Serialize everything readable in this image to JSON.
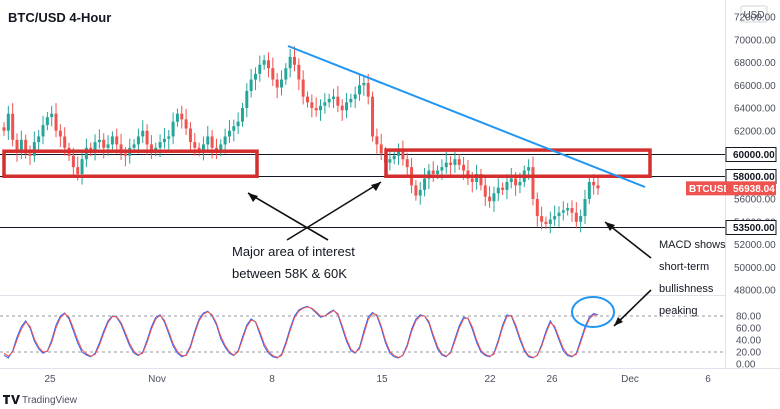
{
  "header": {
    "symbol_title": "BTC/USD 4-Hour",
    "currency_badge": "USD"
  },
  "footer": {
    "brand": "TradingView"
  },
  "chart_data": {
    "type": "candlestick",
    "title": "BTC/USD 4-Hour",
    "price_axis": {
      "ticks": [
        "72000.00",
        "70000.00",
        "68000.00",
        "66000.00",
        "64000.00",
        "62000.00",
        "60000.00",
        "58000.00",
        "56000.00",
        "54000.00",
        "53500.00",
        "52000.00",
        "50000.00",
        "48000.00"
      ],
      "range": [
        48000,
        72000
      ]
    },
    "oscillator_axis": {
      "ticks": [
        "80.00",
        "60.00",
        "40.00",
        "20.00",
        "0.00"
      ],
      "range": [
        0,
        100
      ]
    },
    "time_axis": {
      "ticks": [
        "25",
        "Nov",
        "8",
        "15",
        "22",
        "26",
        "Dec",
        "6"
      ]
    },
    "horizontal_levels": [
      {
        "label": "60000.00",
        "value": 60000
      },
      {
        "label": "58000.00",
        "value": 58000
      },
      {
        "label": "53500.00",
        "value": 53500
      }
    ],
    "last_price": {
      "label": "BTCUSD",
      "value": "56938.04",
      "color": "#ef5350"
    },
    "trendline": {
      "color": "#2196f3"
    },
    "zones": [
      {
        "name": "left-interest-zone",
        "low": 58000,
        "high": 60200,
        "color": "#d32f2f"
      },
      {
        "name": "right-interest-zone",
        "low": 58000,
        "high": 60300,
        "color": "#d32f2f"
      }
    ],
    "candles": [
      62000,
      63500,
      61200,
      60200,
      61200,
      60000,
      59800,
      61000,
      61500,
      62500,
      63200,
      63500,
      62000,
      61500,
      60500,
      59800,
      58800,
      58200,
      59500,
      60500,
      60200,
      61000,
      61200,
      60500,
      60800,
      61500,
      60800,
      60000,
      59800,
      60500,
      60800,
      61500,
      62000,
      60800,
      60200,
      60500,
      61000,
      61300,
      61500,
      62800,
      63500,
      63000,
      62200,
      61000,
      60500,
      60200,
      60800,
      61500,
      60500,
      60200,
      60800,
      61500,
      62000,
      62400,
      62800,
      64000,
      65500,
      66500,
      67000,
      67800,
      68200,
      67500,
      66500,
      65800,
      66500,
      67500,
      68500,
      67800,
      66500,
      65000,
      64500,
      64000,
      63800,
      64200,
      64500,
      64800,
      65000,
      64200,
      63800,
      64500,
      64800,
      65200,
      66000,
      66200,
      65000,
      61500,
      60800,
      60000,
      59200,
      59500,
      59800,
      60200,
      59500,
      58800,
      57200,
      56300,
      56800,
      57800,
      58500,
      58200,
      58500,
      58800,
      59200,
      59000,
      59500,
      59000,
      58500,
      57800,
      57500,
      58200,
      57200,
      56200,
      55800,
      56500,
      57000,
      56800,
      57500,
      57800,
      57200,
      57500,
      58500,
      58800,
      56000,
      54500,
      54000,
      53800,
      54200,
      54500,
      54800,
      55000,
      55200,
      54800,
      54000,
      54500,
      56000,
      57500,
      57200,
      56938
    ],
    "oscillator": {
      "upper_level": 80,
      "lower_level": 20,
      "series": [
        {
          "color": "#2962ff",
          "values": [
            15,
            10,
            22,
            45,
            62,
            72,
            60,
            38,
            25,
            18,
            22,
            40,
            65,
            80,
            85,
            75,
            55,
            35,
            20,
            15,
            12,
            18,
            35,
            55,
            72,
            80,
            78,
            66,
            48,
            30,
            18,
            14,
            20,
            40,
            62,
            78,
            82,
            70,
            50,
            30,
            18,
            12,
            15,
            30,
            55,
            75,
            85,
            88,
            80,
            65,
            42,
            28,
            18,
            14,
            22,
            45,
            65,
            75,
            70,
            50,
            30,
            18,
            12,
            10,
            16,
            36,
            60,
            80,
            90,
            94,
            96,
            92,
            85,
            78,
            80,
            86,
            90,
            82,
            60,
            38,
            22,
            18,
            28,
            55,
            78,
            86,
            80,
            60,
            35,
            18,
            12,
            10,
            15,
            32,
            58,
            75,
            82,
            80,
            68,
            45,
            25,
            15,
            12,
            20,
            42,
            64,
            78,
            76,
            58,
            36,
            20,
            14,
            12,
            18,
            40,
            65,
            82,
            80,
            62,
            40,
            22,
            12,
            10,
            15,
            32,
            55,
            72,
            60,
            40,
            22,
            14,
            12,
            18,
            40,
            62,
            78,
            84,
            82
          ]
        },
        {
          "color": "#ef5350",
          "values": [
            18,
            13,
            20,
            40,
            58,
            70,
            63,
            42,
            28,
            20,
            21,
            36,
            60,
            77,
            84,
            78,
            60,
            40,
            24,
            17,
            13,
            16,
            31,
            51,
            69,
            79,
            79,
            69,
            52,
            34,
            21,
            15,
            18,
            36,
            58,
            75,
            81,
            73,
            54,
            34,
            21,
            14,
            14,
            27,
            51,
            72,
            83,
            87,
            82,
            68,
            46,
            31,
            20,
            15,
            20,
            41,
            62,
            73,
            71,
            54,
            34,
            21,
            14,
            11,
            14,
            32,
            56,
            77,
            88,
            93,
            95,
            93,
            87,
            80,
            80,
            84,
            89,
            84,
            64,
            42,
            25,
            19,
            25,
            50,
            74,
            84,
            82,
            64,
            39,
            21,
            14,
            11,
            14,
            29,
            54,
            72,
            80,
            80,
            71,
            49,
            29,
            17,
            13,
            18,
            38,
            60,
            75,
            77,
            62,
            40,
            23,
            16,
            13,
            16,
            36,
            61,
            79,
            81,
            66,
            44,
            25,
            14,
            11,
            14,
            29,
            51,
            69,
            63,
            44,
            26,
            16,
            13,
            16,
            36,
            58,
            75,
            82,
            82
          ]
        }
      ]
    },
    "annotations": [
      {
        "name": "zone-note",
        "lines": [
          "Major area of interest",
          "between 58K & 60K"
        ]
      },
      {
        "name": "macd-note",
        "lines": [
          "MACD shows",
          "short-term",
          "bullishness",
          "peaking"
        ]
      }
    ]
  }
}
